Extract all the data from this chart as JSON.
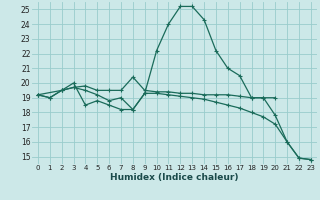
{
  "xlabel": "Humidex (Indice chaleur)",
  "bg_color": "#cce8e8",
  "grid_color": "#99cccc",
  "line_color": "#1a6b5a",
  "xlim": [
    -0.5,
    23.5
  ],
  "ylim": [
    14.5,
    25.5
  ],
  "yticks": [
    15,
    16,
    17,
    18,
    19,
    20,
    21,
    22,
    23,
    24,
    25
  ],
  "xticks": [
    0,
    1,
    2,
    3,
    4,
    5,
    6,
    7,
    8,
    9,
    10,
    11,
    12,
    13,
    14,
    15,
    16,
    17,
    18,
    19,
    20,
    21,
    22,
    23
  ],
  "series1": [
    [
      0,
      19.2
    ],
    [
      1,
      19.0
    ],
    [
      2,
      19.5
    ],
    [
      3,
      19.7
    ],
    [
      4,
      19.5
    ],
    [
      5,
      19.2
    ],
    [
      6,
      18.8
    ],
    [
      7,
      19.0
    ],
    [
      8,
      18.2
    ],
    [
      9,
      19.3
    ],
    [
      10,
      22.2
    ],
    [
      11,
      24.0
    ],
    [
      12,
      25.2
    ],
    [
      13,
      25.2
    ],
    [
      14,
      24.3
    ],
    [
      15,
      22.2
    ],
    [
      16,
      21.0
    ],
    [
      17,
      20.5
    ],
    [
      18,
      19.0
    ],
    [
      19,
      19.0
    ],
    [
      20,
      17.8
    ],
    [
      21,
      16.0
    ],
    [
      22,
      14.9
    ],
    [
      23,
      14.8
    ]
  ],
  "series2": [
    [
      0,
      19.2
    ],
    [
      1,
      19.0
    ],
    [
      2,
      19.5
    ],
    [
      3,
      19.7
    ],
    [
      4,
      19.8
    ],
    [
      5,
      19.5
    ],
    [
      6,
      19.5
    ],
    [
      7,
      19.5
    ],
    [
      8,
      20.4
    ],
    [
      9,
      19.5
    ],
    [
      10,
      19.4
    ],
    [
      11,
      19.4
    ],
    [
      12,
      19.3
    ],
    [
      13,
      19.3
    ],
    [
      14,
      19.2
    ],
    [
      15,
      19.2
    ],
    [
      16,
      19.2
    ],
    [
      17,
      19.1
    ],
    [
      18,
      19.0
    ],
    [
      19,
      19.0
    ],
    [
      20,
      19.0
    ]
  ],
  "series3": [
    [
      0,
      19.2
    ],
    [
      2,
      19.5
    ],
    [
      3,
      20.0
    ],
    [
      4,
      18.5
    ],
    [
      5,
      18.8
    ],
    [
      6,
      18.5
    ],
    [
      7,
      18.2
    ],
    [
      8,
      18.2
    ],
    [
      9,
      19.3
    ],
    [
      10,
      19.3
    ],
    [
      11,
      19.2
    ],
    [
      12,
      19.1
    ],
    [
      13,
      19.0
    ],
    [
      14,
      18.9
    ],
    [
      15,
      18.7
    ],
    [
      16,
      18.5
    ],
    [
      17,
      18.3
    ],
    [
      18,
      18.0
    ],
    [
      19,
      17.7
    ],
    [
      20,
      17.2
    ],
    [
      21,
      16.0
    ],
    [
      22,
      14.9
    ],
    [
      23,
      14.8
    ]
  ]
}
